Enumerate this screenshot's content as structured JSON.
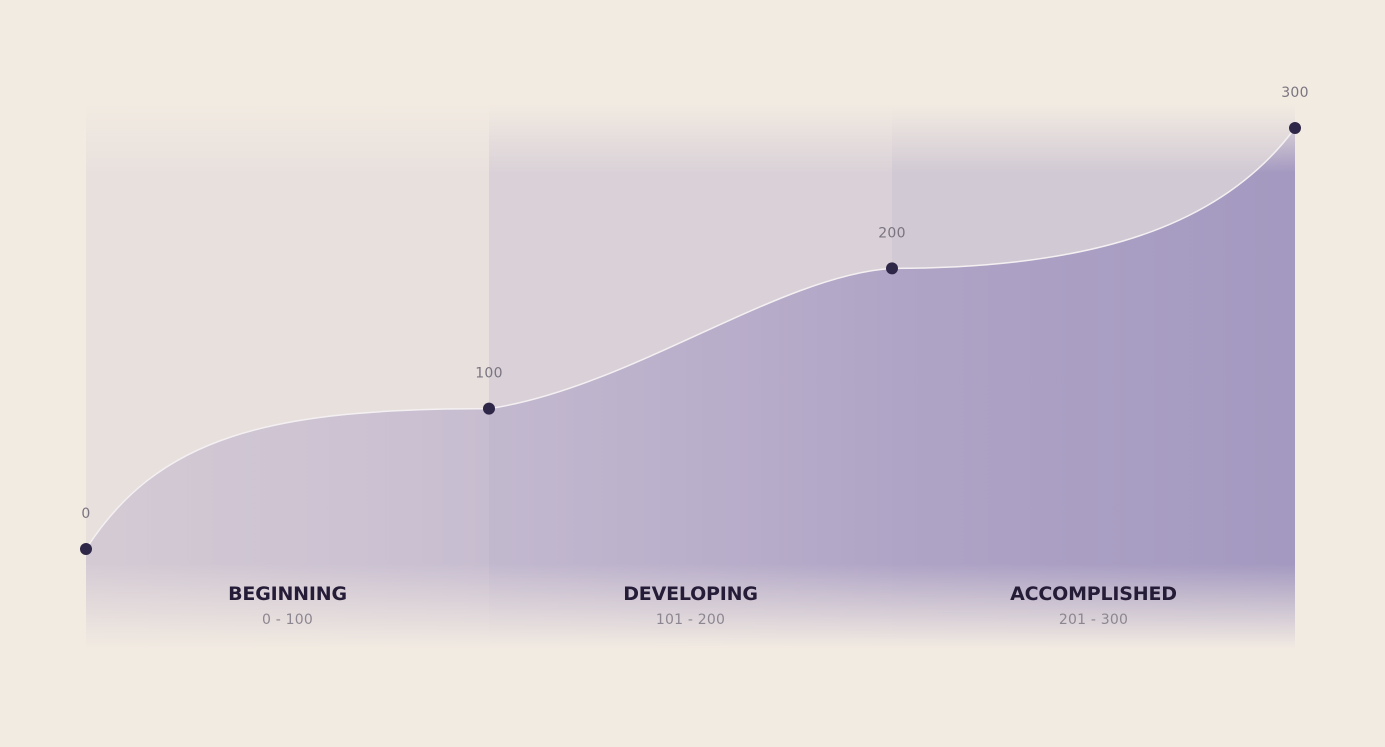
{
  "colors": {
    "background": "#f2ebe2",
    "area_light": "#e6dde0",
    "area_accent": "#a89dc2",
    "point": "#2f2747",
    "curve": "#f4f0f2",
    "stage_name": "#251c38",
    "stage_range": "#8c8690",
    "point_label": "#7a7480"
  },
  "chart_data": {
    "type": "area",
    "title": "",
    "xlabel": "",
    "ylabel": "",
    "ylim": [
      0,
      300
    ],
    "grid": false,
    "legend": "none",
    "points": [
      {
        "x": 0,
        "y": 0,
        "label": "0"
      },
      {
        "x": 1,
        "y": 100,
        "label": "100"
      },
      {
        "x": 2,
        "y": 200,
        "label": "200"
      },
      {
        "x": 3,
        "y": 300,
        "label": "300"
      }
    ],
    "stages": [
      {
        "name": "BEGINNING",
        "range": "0 - 100"
      },
      {
        "name": "DEVELOPING",
        "range": "101 - 200"
      },
      {
        "name": "ACCOMPLISHED",
        "range": "201 - 300"
      }
    ]
  }
}
